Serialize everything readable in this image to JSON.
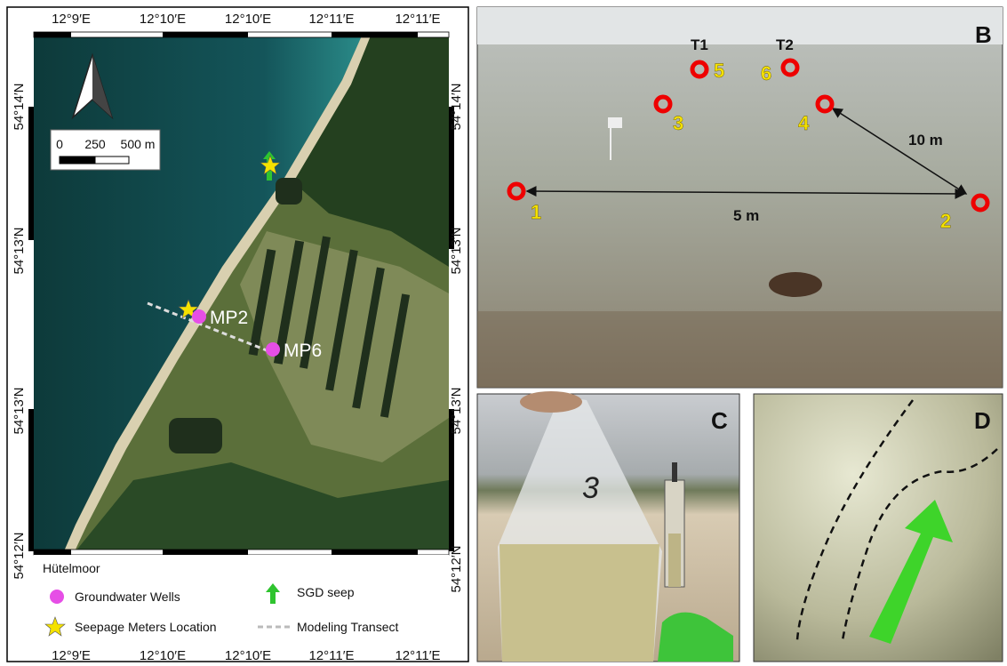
{
  "panel_a": {
    "lon_labels_top": [
      "12°9′E",
      "12°10′E",
      "12°10′E",
      "12°11′E",
      "12°11′E"
    ],
    "lon_labels_bottom": [
      "12°9′E",
      "12°10′E",
      "12°10′E",
      "12°11′E",
      "12°11′E"
    ],
    "lat_labels_left": [
      "54°14′N",
      "54°13′N",
      "54°13′N",
      "54°12′N"
    ],
    "lat_labels_right": [
      "54°14′N",
      "54°13′N",
      "54°13′N",
      "54°12′N"
    ],
    "scale_bar": [
      "0",
      "250",
      "500 m"
    ],
    "wells": [
      "MP2",
      "MP6"
    ],
    "legend": {
      "title": "Hütelmoor",
      "items": [
        "Groundwater Wells",
        "SGD seep",
        "Seepage Meters Location",
        "Modeling Transect"
      ]
    }
  },
  "panel_b": {
    "label": "B",
    "transects": [
      "T1",
      "T2"
    ],
    "points": [
      "1",
      "2",
      "3",
      "4",
      "5",
      "6"
    ],
    "distances": [
      "10 m",
      "5 m"
    ]
  },
  "panel_c": {
    "label": "C",
    "bag_number": "3"
  },
  "panel_d": {
    "label": "D"
  }
}
